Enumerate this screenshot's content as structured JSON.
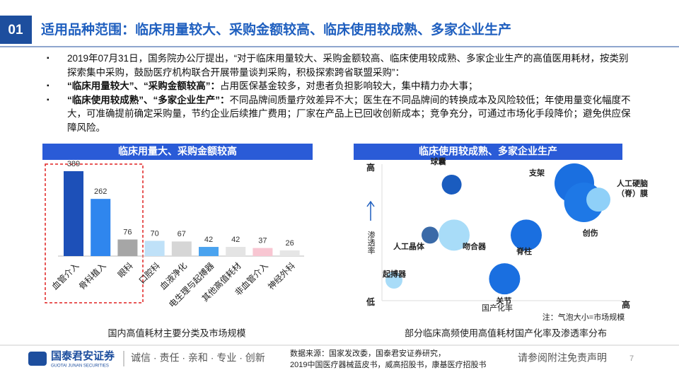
{
  "header": {
    "number": "01",
    "title": "适用品种范围：临床用量较大、采购金额较高、临床使用较成熟、多家企业生产"
  },
  "bullets": [
    {
      "text": "2019年07月31日，国务院办公厅提出，“对于临床用量较大、采购金额较高、临床使用较成熟、多家企业生产的高值医用耗材，按类别探索集中采购，鼓励医疗机构联合开展带量谈判采购，积极探索跨省联盟采购”："
    },
    {
      "bold": "“临床用量较大”、“采购金额较高”：",
      "text": "占用医保基金较多，对患者负担影响较大，集中精力办大事；"
    },
    {
      "bold": "“临床使用较成熟”、“多家企业生产”：",
      "text": "不同品牌间质量疗效差异不大；医生在不同品牌间的转换成本及风险较低；年使用量变化幅度不大，可准确提前确定采购量，节约企业后续推广费用；厂家在产品上已回收创新成本；竞争充分，可通过市场化手段降价；避免供应保障风险。"
    }
  ],
  "chart_data": [
    {
      "type": "bar",
      "title": "临床用量大、采购金额较高",
      "caption": "国内高值耗材主要分类及市场规模",
      "categories": [
        "血管介入",
        "骨科植入",
        "眼科",
        "口腔科",
        "血液净化",
        "电生理与起搏器",
        "其他高值耗材",
        "非血管介入",
        "神经外科"
      ],
      "values": [
        389,
        262,
        76,
        70,
        67,
        42,
        42,
        37,
        26
      ],
      "colors": [
        "#1d50b8",
        "#2f86ee",
        "#a6a6a6",
        "#bfe1f8",
        "#d6d6d6",
        "#4aa3ef",
        "#e4e4e4",
        "#f8c6d2",
        "#e6e6e6"
      ],
      "ylim": [
        0,
        400
      ]
    },
    {
      "type": "scatter",
      "title": "临床使用较成熟、多家企业生产",
      "caption": "部分临床高频使用高值耗材国产化率及渗透率分布",
      "x_label": "国产化率",
      "y_label": "渗透率",
      "y_high": "高",
      "y_low": "低",
      "x_high": "高",
      "note": "注：气泡大小=市场规模",
      "xlim": [
        0,
        10
      ],
      "ylim": [
        0,
        10
      ],
      "points": [
        {
          "name": "球囊",
          "x": 2.9,
          "y": 8.5,
          "size": 14,
          "color": "#1a5cbf"
        },
        {
          "name": "支架",
          "x": 8.0,
          "y": 8.6,
          "size": 28,
          "color": "#1a6fe0"
        },
        {
          "name": "创伤",
          "x": 8.4,
          "y": 7.2,
          "size": 28,
          "color": "#1e78e6"
        },
        {
          "name": "人工硬脑（脊）膜",
          "x": 9.0,
          "y": 7.4,
          "size": 17,
          "color": "#8fd0f8"
        },
        {
          "name": "人工晶体",
          "x": 2.0,
          "y": 4.8,
          "size": 12,
          "color": "#3a6aa8"
        },
        {
          "name": "吻合器",
          "x": 3.0,
          "y": 4.8,
          "size": 22,
          "color": "#a8dcf8"
        },
        {
          "name": "脊柱",
          "x": 6.0,
          "y": 4.8,
          "size": 22,
          "color": "#1a6fe0"
        },
        {
          "name": "起搏器",
          "x": 0.5,
          "y": 1.5,
          "size": 12,
          "color": "#a8dcf8"
        },
        {
          "name": "关节",
          "x": 5.1,
          "y": 1.6,
          "size": 22,
          "color": "#1a6fe0"
        }
      ]
    }
  ],
  "footer": {
    "logo": "国泰君安证券",
    "logo_en": "GUOTAI JUNAN SECURITIES",
    "slogan": "诚信 · 责任 · 亲和 · 专业 · 创新",
    "source": [
      "数据来源：国家发改委，国泰君安证券研究，",
      "2019中国医疗器械蓝皮书，威高招股书，康基医疗招股书"
    ],
    "disclaimer": "请参阅附注免责声明",
    "page": "7"
  }
}
